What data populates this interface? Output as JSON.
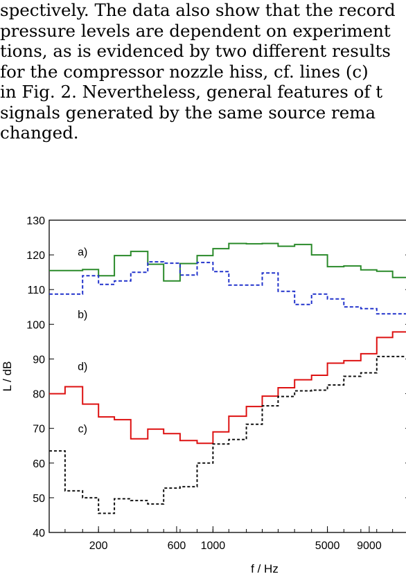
{
  "paragraph": {
    "lines": [
      "spectively. The data also show that the record",
      "pressure levels are dependent on experiment",
      "tions, as is evidenced by two different results",
      "for the compressor nozzle hiss, cf. lines (c)",
      "in Fig. 2. Nevertheless, general features of t",
      "signals generated by the same source rema",
      "changed."
    ]
  },
  "chart_data": {
    "type": "line",
    "xscale": "log",
    "xlabel": "f / Hz",
    "ylabel": "L / dB",
    "ylim": [
      40,
      130
    ],
    "yticks": [
      40,
      50,
      60,
      70,
      80,
      90,
      100,
      110,
      120,
      130
    ],
    "xticks": [
      {
        "value": 200,
        "label": "200"
      },
      {
        "value": 600,
        "label": "600"
      },
      {
        "value": 1000,
        "label": "1000"
      },
      {
        "value": 5000,
        "label": "5000"
      },
      {
        "value": 9000,
        "label": "9000"
      }
    ],
    "x_edges": [
      100,
      125,
      160,
      200,
      250,
      315,
      400,
      500,
      630,
      800,
      1000,
      1250,
      1600,
      2000,
      2500,
      3150,
      4000,
      5000,
      6300,
      8000,
      10000,
      12500,
      16000
    ],
    "series": [
      {
        "name": "a)",
        "color": "#2a8a2a",
        "dash": "",
        "label_value": [
          160,
          121
        ],
        "values": [
          115.5,
          115.5,
          115.8,
          114,
          119.8,
          121,
          117.3,
          112.5,
          117.5,
          119.8,
          121.8,
          123.3,
          123.2,
          123.3,
          122.5,
          123,
          120,
          116.6,
          116.8,
          115.7,
          115.3,
          113.5
        ]
      },
      {
        "name": "b)",
        "color": "#2233cc",
        "dash": "5,3",
        "label_value": [
          160,
          103
        ],
        "values": [
          108.7,
          108.7,
          114,
          111.5,
          112.5,
          115,
          118,
          117.6,
          114.2,
          117.8,
          115.2,
          111.3,
          111.3,
          114.8,
          109.5,
          105.7,
          108.7,
          107.3,
          105,
          104.5,
          103,
          103
        ]
      },
      {
        "name": "d)",
        "color": "#dd1111",
        "dash": "",
        "label_value": [
          160,
          88
        ],
        "values": [
          80,
          82,
          77,
          73.3,
          72.5,
          67,
          69.8,
          68.5,
          66.5,
          65.7,
          69,
          73.5,
          76.3,
          79.3,
          81.7,
          84,
          85.3,
          88.8,
          89.5,
          91.5,
          96.2,
          97.8
        ]
      },
      {
        "name": "c)",
        "color": "#111111",
        "dash": "4,3",
        "label_value": [
          160,
          70
        ],
        "values": [
          63.5,
          52,
          50,
          45.5,
          49.7,
          49.2,
          48.2,
          52.8,
          53.2,
          60,
          65.5,
          66.8,
          71.2,
          76.5,
          79.2,
          80.8,
          81,
          82.5,
          85,
          86,
          90.7,
          90.7
        ]
      }
    ]
  }
}
